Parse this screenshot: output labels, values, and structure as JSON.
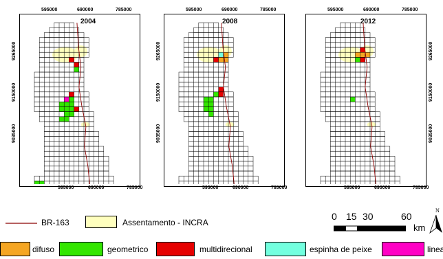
{
  "maps": [
    {
      "year": "2004",
      "x_ticks": [
        "595000",
        "690000",
        "785000"
      ],
      "y_ticks": [
        "9265000",
        "9150000",
        "9035000"
      ]
    },
    {
      "year": "2008",
      "x_ticks": [
        "595000",
        "690000",
        "785000"
      ],
      "y_ticks": [
        "9265000",
        "9150000",
        "9035000"
      ]
    },
    {
      "year": "2012",
      "x_ticks": [
        "595000",
        "690000",
        "785000"
      ],
      "y_ticks": [
        "9265000",
        "9150000",
        "9035000"
      ]
    }
  ],
  "legend": {
    "road": "BR-163",
    "settlement": "Assentamento - INCRA",
    "classes": [
      {
        "label": "difuso",
        "color": "#F5A623"
      },
      {
        "label": "geometrico",
        "color": "#33E600"
      },
      {
        "label": "multidirecional",
        "color": "#E60000"
      },
      {
        "label": "espinha de peixe",
        "color": "#73FFDF"
      },
      {
        "label": "linea",
        "color": "#FF00C5"
      }
    ]
  },
  "colors": {
    "road": "#8B0000",
    "settlement": "#FFFFBE"
  },
  "scale_bar": {
    "labels": [
      "0",
      "15",
      "30",
      "60"
    ],
    "unit": "km"
  },
  "north_arrow": "N"
}
